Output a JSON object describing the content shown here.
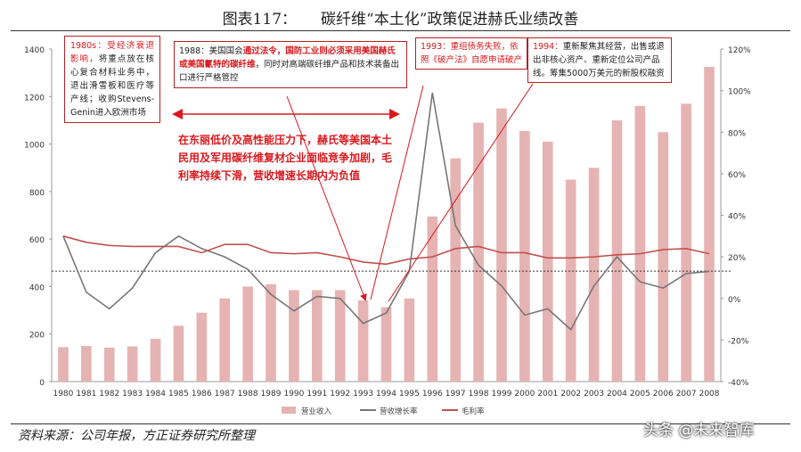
{
  "header": {
    "title": "图表117：     碳纤维“本土化”政策促进赫氏业绩改善"
  },
  "footer": {
    "source": "资料来源：公司年报，方正证券研究所整理",
    "watermark": "头条 @未来智库"
  },
  "annotations": {
    "box1980": {
      "red": "1980s：受经济衰退影响，",
      "black": "将重点放在核心复合材料业务中，退出滑雪板和医疗等产线；收购Stevens-Genin进入欧洲市场"
    },
    "box1988": {
      "a": "1988：美国国会",
      "b": "通过法令，国防工业则必须采用美国赫氏或美国氰特的碳纤维",
      "c": "，同时对高端碳纤维产品和技术装备出口进行严格管控"
    },
    "box1993": {
      "text": "1993：重组债务失败，依照《破产法》自愿申请破产"
    },
    "box1994": {
      "red": "1994：",
      "black": "重新聚焦其经营，出售或退出非核心资产、重新定位公司产品线。筹集5000万美元的新股权融资"
    },
    "midnote": "在东丽低价及高性能压力下，赫氏等美国本土民用及军用碳纤维复材企业面临竞争加剧，毛利率持续下滑，营收增速长期内为负值"
  },
  "chart_data": {
    "type": "bar+line",
    "categories": [
      "1980",
      "1981",
      "1982",
      "1983",
      "1984",
      "1985",
      "1986",
      "1987",
      "1988",
      "1989",
      "1990",
      "1991",
      "1992",
      "1993",
      "1994",
      "1995",
      "1996",
      "1997",
      "1998",
      "1999",
      "2000",
      "2001",
      "2002",
      "2003",
      "2004",
      "2005",
      "2006",
      "2007",
      "2008"
    ],
    "series": [
      {
        "name": "营业收入",
        "type": "bar",
        "axis": "left",
        "color": "#e6b3b3",
        "values": [
          145,
          150,
          143,
          148,
          180,
          235,
          290,
          350,
          400,
          410,
          385,
          385,
          385,
          342,
          313,
          350,
          695,
          940,
          1090,
          1150,
          1055,
          1010,
          850,
          900,
          1100,
          1160,
          1050,
          1170,
          1325
        ]
      },
      {
        "name": "营收增长率",
        "type": "line",
        "axis": "right",
        "color": "#777777",
        "values": [
          30,
          3,
          -5,
          5,
          22,
          30,
          24,
          20,
          14,
          2,
          -6,
          1,
          0,
          -12,
          -7,
          13,
          99,
          35,
          16,
          6,
          -8,
          -5,
          -15,
          6,
          20,
          8,
          5,
          12,
          13
        ]
      },
      {
        "name": "毛利率",
        "type": "line",
        "axis": "right",
        "color": "#c0504d",
        "values": [
          30,
          27,
          25.5,
          25,
          25,
          25,
          22,
          26,
          26,
          22,
          21.5,
          22,
          20,
          17.5,
          16.5,
          19,
          20,
          24,
          25,
          22,
          22,
          19.5,
          19.5,
          20,
          21,
          21.5,
          23.5,
          24,
          21.5
        ]
      }
    ],
    "left_axis": {
      "min": 0,
      "max": 1400,
      "ticks": [
        "0",
        "200",
        "400",
        "600",
        "800",
        "1000",
        "1200",
        "1400"
      ]
    },
    "right_axis": {
      "min": -40,
      "max": 120,
      "ticks": [
        "-40%",
        "-20%",
        "0%",
        "20%",
        "40%",
        "60%",
        "80%",
        "100%",
        "120%"
      ]
    },
    "reference_line_left": 465,
    "legend_position": "bottom"
  }
}
